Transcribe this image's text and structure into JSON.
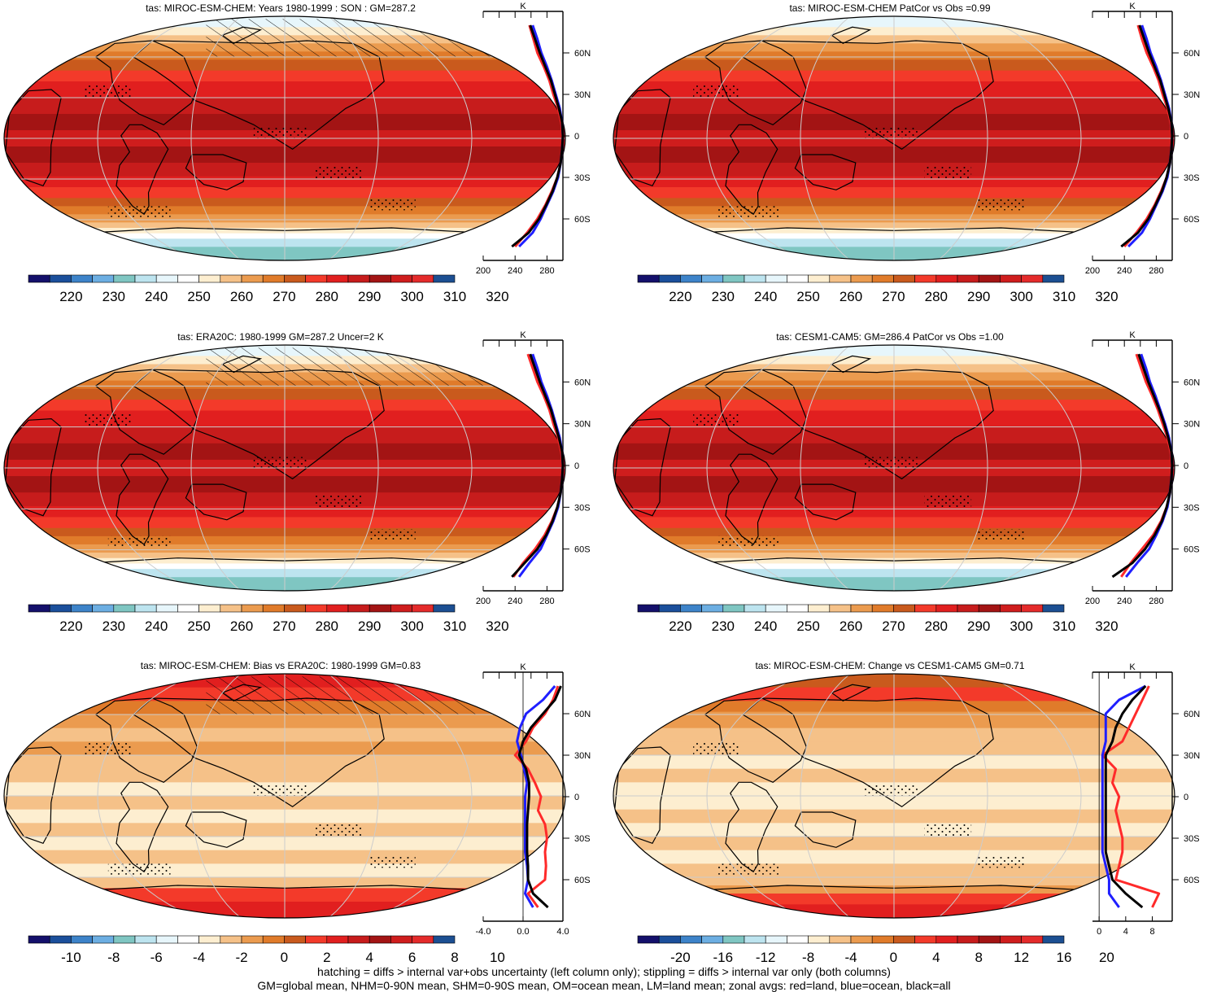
{
  "colors": {
    "abs_levels": [
      "#14106b",
      "#1b4f9b",
      "#3d83c9",
      "#6caee2",
      "#7fc6c2",
      "#bde4ef",
      "#e7f6fb",
      "#ffffff",
      "#fdeed0",
      "#f5c188",
      "#eb9b4f",
      "#e07b2a",
      "#c95a1d",
      "#f33a2a",
      "#e11f1f",
      "#c71c1c",
      "#a31414",
      "#cf1d1d",
      "#e42b2b",
      "#1c4f92"
    ],
    "diff_levels": [
      "#14106b",
      "#1b4f9b",
      "#3d83c9",
      "#6caee2",
      "#7fc6c2",
      "#bde4ef",
      "#e7f6fb",
      "#ffffff",
      "#fdeed0",
      "#f5c188",
      "#eb9b4f",
      "#e07b2a",
      "#c95a1d",
      "#f33a2a",
      "#e11f1f",
      "#c71c1c",
      "#a31414",
      "#cf1d1d",
      "#e42b2b",
      "#1c4f92"
    ],
    "land": "#ff2a2a",
    "ocean": "#1f1fff",
    "all": "#000000"
  },
  "chart_data": [
    {
      "type": "heatmap",
      "title": "tas: MIROC-ESM-CHEM: Years 1980-1999 : SON : GM=287.2",
      "colorbar_ticks": [
        "220",
        "230",
        "240",
        "250",
        "260",
        "270",
        "280",
        "290",
        "300",
        "310",
        "320"
      ],
      "profile": {
        "xlim": [
          200,
          300
        ],
        "xticks": [
          "200",
          "240",
          "280"
        ],
        "unit": "K",
        "lat_ticks": [
          "60N",
          "30N",
          "0",
          "30S",
          "60S"
        ],
        "lat": [
          80,
          70,
          60,
          50,
          40,
          30,
          20,
          10,
          0,
          -10,
          -20,
          -30,
          -40,
          -50,
          -60,
          -70,
          -80
        ],
        "land": [
          258,
          263,
          268,
          276,
          283,
          288,
          294,
          298,
          300,
          299,
          297,
          293,
          286,
          278,
          268,
          255,
          240
        ],
        "ocean": [
          262,
          268,
          273,
          280,
          286,
          291,
          296,
          299,
          300,
          299,
          297,
          294,
          288,
          280,
          272,
          262,
          245
        ],
        "all": [
          259,
          265,
          271,
          278,
          285,
          290,
          295,
          299,
          300,
          299,
          297,
          293,
          287,
          279,
          270,
          257,
          236
        ]
      }
    },
    {
      "type": "heatmap",
      "title": "tas: MIROC-ESM-CHEM PatCor vs Obs =0.99",
      "colorbar_ticks": [
        "220",
        "230",
        "240",
        "250",
        "260",
        "270",
        "280",
        "290",
        "300",
        "310",
        "320"
      ],
      "profile": {
        "xlim": [
          200,
          300
        ],
        "xticks": [
          "200",
          "240",
          "280"
        ],
        "unit": "K",
        "lat_ticks": [
          "60N",
          "30N",
          "0",
          "30S",
          "60S"
        ],
        "lat": [
          80,
          70,
          60,
          50,
          40,
          30,
          20,
          10,
          0,
          -10,
          -20,
          -30,
          -40,
          -50,
          -60,
          -70,
          -80
        ],
        "land": [
          257,
          262,
          268,
          276,
          283,
          288,
          294,
          298,
          300,
          299,
          297,
          293,
          286,
          278,
          268,
          255,
          240
        ],
        "ocean": [
          262,
          268,
          273,
          280,
          286,
          291,
          296,
          299,
          300,
          299,
          297,
          294,
          288,
          280,
          272,
          262,
          245
        ],
        "all": [
          259,
          265,
          271,
          278,
          285,
          290,
          295,
          299,
          300,
          299,
          297,
          293,
          287,
          279,
          270,
          257,
          236
        ]
      }
    },
    {
      "type": "heatmap",
      "title": "tas: ERA20C: 1980-1999 GM=287.2 Uncer=2 K",
      "colorbar_ticks": [
        "220",
        "230",
        "240",
        "250",
        "260",
        "270",
        "280",
        "290",
        "300",
        "310",
        "320"
      ],
      "profile": {
        "xlim": [
          200,
          300
        ],
        "xticks": [
          "200",
          "240",
          "280"
        ],
        "unit": "K",
        "lat_ticks": [
          "60N",
          "30N",
          "0",
          "30S",
          "60S"
        ],
        "lat": [
          80,
          70,
          60,
          50,
          40,
          30,
          20,
          10,
          0,
          -10,
          -20,
          -30,
          -40,
          -50,
          -60,
          -70,
          -80
        ],
        "land": [
          256,
          262,
          268,
          276,
          283,
          288,
          294,
          298,
          300,
          299,
          297,
          293,
          286,
          277,
          265,
          250,
          238
        ],
        "ocean": [
          262,
          268,
          273,
          280,
          286,
          291,
          296,
          299,
          300,
          299,
          297,
          294,
          288,
          280,
          272,
          258,
          245
        ],
        "all": [
          259,
          265,
          271,
          278,
          285,
          290,
          295,
          299,
          300,
          299,
          297,
          293,
          287,
          279,
          268,
          252,
          236
        ]
      }
    },
    {
      "type": "heatmap",
      "title": "tas: CESM1-CAM5: GM=286.4 PatCor vs Obs =1.00",
      "colorbar_ticks": [
        "220",
        "230",
        "240",
        "250",
        "260",
        "270",
        "280",
        "290",
        "300",
        "310",
        "320"
      ],
      "profile": {
        "xlim": [
          200,
          300
        ],
        "xticks": [
          "200",
          "240",
          "280"
        ],
        "unit": "K",
        "lat_ticks": [
          "60N",
          "30N",
          "0",
          "30S",
          "60S"
        ],
        "lat": [
          80,
          70,
          60,
          50,
          40,
          30,
          20,
          10,
          0,
          -10,
          -20,
          -30,
          -40,
          -50,
          -60,
          -70,
          -80
        ],
        "land": [
          255,
          261,
          267,
          275,
          282,
          288,
          294,
          298,
          300,
          299,
          297,
          293,
          286,
          276,
          262,
          248,
          236
        ],
        "ocean": [
          261,
          267,
          272,
          279,
          285,
          291,
          296,
          299,
          300,
          299,
          297,
          294,
          288,
          280,
          271,
          256,
          242
        ],
        "all": [
          258,
          264,
          270,
          277,
          284,
          290,
          295,
          299,
          300,
          299,
          297,
          293,
          287,
          278,
          266,
          250,
          225
        ]
      }
    },
    {
      "type": "heatmap",
      "title": "tas: MIROC-ESM-CHEM: Bias vs ERA20C: 1980-1999  GM=0.83",
      "colorbar_ticks": [
        "-10",
        "-8",
        "-6",
        "-4",
        "-2",
        "0",
        "2",
        "4",
        "6",
        "8",
        "10"
      ],
      "profile": {
        "xlim": [
          -4,
          4
        ],
        "xticks": [
          "-4.0",
          "0.0",
          "4.0"
        ],
        "unit": "K",
        "lat_ticks": [
          "60N",
          "30N",
          "0",
          "30S",
          "60S"
        ],
        "lat": [
          80,
          70,
          60,
          50,
          40,
          30,
          20,
          10,
          0,
          -10,
          -20,
          -30,
          -40,
          -50,
          -60,
          -70,
          -80
        ],
        "land": [
          3.5,
          3.0,
          2.2,
          1.0,
          0.3,
          -0.8,
          0.5,
          1.2,
          1.8,
          1.5,
          2.2,
          2.4,
          2.2,
          2.3,
          2.2,
          0.5,
          1.5
        ],
        "ocean": [
          3.2,
          2.0,
          0.3,
          -0.3,
          -0.6,
          -0.2,
          0.1,
          0.4,
          0.2,
          0.2,
          0.2,
          0.2,
          0.2,
          0.4,
          0.5,
          0.2,
          1.0
        ],
        "all": [
          3.8,
          3.2,
          2.0,
          0.8,
          0.0,
          -0.4,
          0.3,
          0.6,
          0.6,
          0.5,
          0.4,
          0.4,
          0.4,
          0.5,
          0.5,
          1.0,
          2.5
        ]
      }
    },
    {
      "type": "heatmap",
      "title": "tas: MIROC-ESM-CHEM: Change vs CESM1-CAM5 GM=0.71",
      "colorbar_ticks": [
        "-20",
        "-16",
        "-12",
        "-8",
        "-4",
        "0",
        "4",
        "8",
        "12",
        "16",
        "20"
      ],
      "profile": {
        "xlim": [
          -1,
          11
        ],
        "xticks": [
          "0",
          "4",
          "8"
        ],
        "unit": "K",
        "lat_ticks": [
          "60N",
          "30N",
          "0",
          "30S",
          "60S"
        ],
        "lat": [
          80,
          70,
          60,
          50,
          40,
          30,
          20,
          10,
          0,
          -10,
          -20,
          -30,
          -40,
          -50,
          -60,
          -70,
          -80
        ],
        "land": [
          7.5,
          6.5,
          5.5,
          4.5,
          3.5,
          0.5,
          2.5,
          2.0,
          3.0,
          2.5,
          3.0,
          3.5,
          3.5,
          3.0,
          2.5,
          9.0,
          8.0
        ],
        "ocean": [
          7.0,
          3.0,
          1.0,
          1.0,
          1.0,
          0.5,
          0.5,
          0.5,
          0.5,
          0.5,
          0.5,
          0.5,
          0.5,
          1.0,
          1.5,
          1.5,
          3.0
        ],
        "all": [
          7.0,
          5.0,
          3.5,
          2.5,
          2.0,
          1.0,
          1.0,
          1.0,
          1.0,
          1.0,
          1.0,
          1.0,
          1.0,
          1.5,
          2.0,
          4.0,
          6.5
        ]
      }
    }
  ],
  "footer": {
    "line1": "hatching = diffs > internal var+obs uncertainty (left column only); stippling = diffs > internal var only (both columns)",
    "line2": "GM=global mean, NHM=0-90N mean, SHM=0-90S mean, OM=ocean mean, LM=land mean; zonal avgs: red=land, blue=ocean, black=all"
  }
}
